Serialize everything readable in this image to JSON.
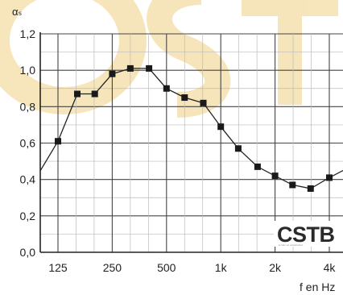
{
  "chart_data": {
    "type": "line",
    "ylabel": "αₛ",
    "xlabel": "f en Hz",
    "y_ticks": [
      "0,0",
      "0,2",
      "0,4",
      "0,6",
      "0,8",
      "1,0",
      "1,2"
    ],
    "x_ticks": [
      "125",
      "250",
      "500",
      "1k",
      "2k",
      "4k"
    ],
    "ylim": [
      0,
      1.2
    ],
    "x_scale": "log",
    "grid": true,
    "marker": "square",
    "line_color": "#222222",
    "series": [
      {
        "x": [
          100,
          125,
          160,
          200,
          250,
          315,
          400,
          500,
          630,
          800,
          1000,
          1250,
          1600,
          2000,
          2500,
          3150,
          4000,
          5000
        ],
        "values": [
          0.45,
          0.61,
          0.87,
          0.87,
          0.98,
          1.01,
          1.01,
          0.9,
          0.85,
          0.82,
          0.69,
          0.57,
          0.47,
          0.42,
          0.37,
          0.35,
          0.41,
          0.46
        ]
      }
    ]
  },
  "logo": {
    "text": "CSTB",
    "tagline": "le futur en construction"
  },
  "colors": {
    "watermark": "#f6e3b4",
    "grid": "#333333"
  }
}
